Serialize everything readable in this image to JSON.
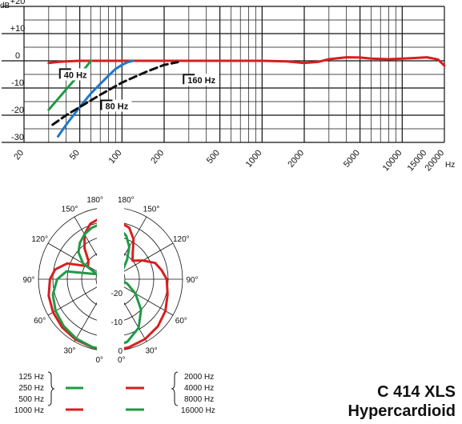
{
  "product": {
    "model": "C 414 XLS",
    "pattern": "Hypercardioid"
  },
  "colors": {
    "red": "#d81e1e",
    "green": "#1f9a46",
    "blue": "#1f78c8",
    "black": "#111111"
  },
  "chart_data": [
    {
      "type": "line",
      "title": "",
      "xlabel": "Hz",
      "ylabel": "dB",
      "xscale": "log",
      "xlim": [
        20,
        20000
      ],
      "ylim": [
        -30,
        20
      ],
      "grid": true,
      "x_ticks": [
        20,
        50,
        100,
        200,
        500,
        1000,
        2000,
        5000,
        10000,
        15000,
        20000
      ],
      "y_ticks": [
        {
          "v": 20,
          "label": "+20"
        },
        {
          "v": 10,
          "label": "+10"
        },
        {
          "v": 0,
          "label": "0"
        },
        {
          "v": -10,
          "label": "-10"
        },
        {
          "v": -20,
          "label": "-20"
        },
        {
          "v": -30,
          "label": "-30"
        }
      ],
      "series": [
        {
          "name": "",
          "color": "red",
          "dash": false,
          "x": [
            30,
            35,
            40,
            50,
            70,
            100,
            200,
            500,
            1000,
            1500,
            2000,
            2500,
            3000,
            4000,
            5000,
            6000,
            8000,
            10000,
            12000,
            15000,
            18000,
            20000
          ],
          "y": [
            -0.8,
            -0.4,
            -0.2,
            0,
            0,
            0,
            0,
            0,
            0,
            -0.2,
            -0.8,
            -0.4,
            0.6,
            1.3,
            1.2,
            0.8,
            0.6,
            0.8,
            1,
            1.3,
            0.5,
            -1.8
          ]
        },
        {
          "name": "",
          "color": "green",
          "dash": false,
          "x": [
            30,
            35,
            40,
            45,
            50,
            55,
            60
          ],
          "y": [
            -18,
            -14,
            -10.5,
            -7.5,
            -5,
            -2.5,
            0
          ]
        },
        {
          "name": "",
          "color": "blue",
          "dash": false,
          "x": [
            35,
            40,
            50,
            60,
            70,
            80,
            90,
            100,
            110,
            120
          ],
          "y": [
            -27.8,
            -23.5,
            -17,
            -12,
            -8.5,
            -5.5,
            -3,
            -1.5,
            -0.5,
            0
          ]
        },
        {
          "name": "",
          "color": "black",
          "dash": true,
          "x": [
            32,
            40,
            50,
            70,
            100,
            150,
            200,
            250
          ],
          "y": [
            -23.5,
            -20,
            -17,
            -12.5,
            -8,
            -4,
            -1.5,
            -0.5
          ]
        }
      ],
      "annotations": [
        {
          "text": "40 Hz",
          "x": 38,
          "y": -6
        },
        {
          "text": "80 Hz",
          "x": 75,
          "y": -17.5
        },
        {
          "text": "160 Hz",
          "x": 290,
          "y": -8
        }
      ]
    },
    {
      "type": "polar",
      "title": "",
      "rings": [
        0,
        -10,
        -20
      ],
      "ring_labels": [
        "0",
        "-10",
        "-20"
      ],
      "angle_labels": [
        "0°",
        "30°",
        "60°",
        "90°",
        "120°",
        "150°",
        "180°"
      ],
      "left_half": [
        {
          "name": "",
          "color": "red",
          "angles": [
            0,
            15,
            30,
            45,
            60,
            75,
            90,
            100,
            110,
            120,
            130,
            140,
            150,
            160,
            170,
            180
          ],
          "db": [
            0,
            -0.5,
            -0.8,
            -1.3,
            -2,
            -2.8,
            -4,
            -5.5,
            -9,
            -16,
            -15,
            -11,
            -7,
            -4.5,
            -3.5,
            -3
          ]
        },
        {
          "name": "",
          "color": "green",
          "angles": [
            0,
            15,
            30,
            45,
            60,
            75,
            90,
            100,
            110,
            120,
            130,
            140,
            150,
            160,
            170,
            180
          ],
          "db": [
            0,
            -0.6,
            -1.2,
            -2,
            -3,
            -4.3,
            -6.5,
            -9.5,
            -20,
            -14,
            -10.5,
            -8.5,
            -7,
            -6,
            -5.5,
            -5
          ]
        }
      ],
      "right_half": [
        {
          "name": "",
          "color": "red",
          "angles": [
            0,
            15,
            30,
            45,
            60,
            75,
            90,
            100,
            110,
            120,
            130,
            140,
            150,
            160,
            170,
            180
          ],
          "db": [
            0,
            -0.5,
            -1,
            -1.8,
            -3,
            -4.5,
            -5.5,
            -7,
            -8.5,
            -12,
            -15,
            -13,
            -9,
            -6,
            -5,
            -5
          ]
        },
        {
          "name": "",
          "color": "green",
          "angles": [
            0,
            15,
            30,
            45,
            60,
            75,
            90,
            100,
            110,
            120,
            130,
            140,
            150,
            160,
            170,
            180
          ],
          "db": [
            -1,
            -2.5,
            -5.5,
            -10,
            -15,
            -19,
            -22,
            -22.5,
            -22,
            -21,
            -19,
            -16,
            -12,
            -9,
            -7,
            -6
          ]
        }
      ]
    }
  ],
  "legend": {
    "left": {
      "freqs": [
        "125 Hz",
        "250 Hz",
        "500 Hz"
      ],
      "single": "1000 Hz"
    },
    "right": {
      "freqs": [
        "2000 Hz",
        "4000 Hz",
        "8000 Hz"
      ],
      "single": "16000 Hz"
    }
  }
}
